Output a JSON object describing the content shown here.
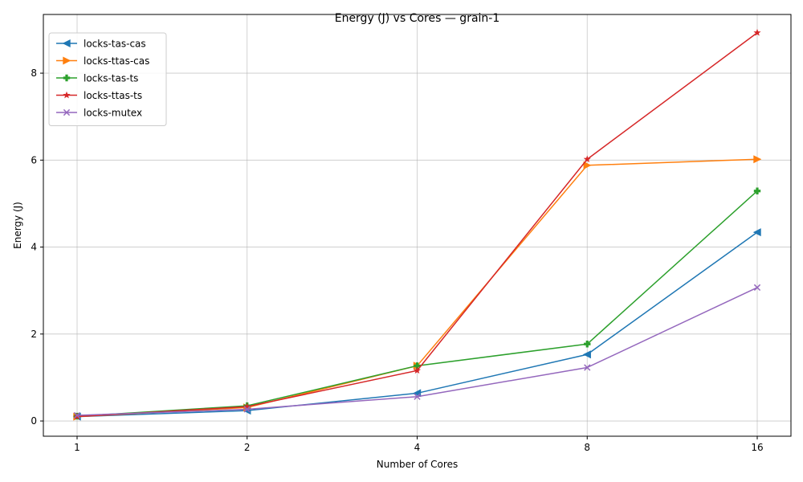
{
  "chart_data": {
    "type": "line",
    "title": "Energy (J) vs Cores — grain-1",
    "xlabel": "Number of Cores",
    "ylabel": "Energy (J)",
    "x": [
      1,
      2,
      4,
      8,
      16
    ],
    "x_tick_labels": [
      "1",
      "2",
      "4",
      "8",
      "16"
    ],
    "x_scale": "log2",
    "ylim": [
      -0.35,
      9.35
    ],
    "y_ticks": [
      0,
      2,
      4,
      6,
      8
    ],
    "y_tick_labels": [
      "0",
      "2",
      "4",
      "6",
      "8"
    ],
    "grid": true,
    "legend_position": "top-left",
    "series": [
      {
        "name": "locks-tas-cas",
        "color": "#1f77b4",
        "marker": "triangle-left",
        "values": [
          0.1,
          0.24,
          0.64,
          1.53,
          4.34
        ]
      },
      {
        "name": "locks-ttas-cas",
        "color": "#ff7f0e",
        "marker": "triangle-right",
        "values": [
          0.1,
          0.31,
          1.27,
          5.88,
          6.02
        ]
      },
      {
        "name": "locks-tas-ts",
        "color": "#2ca02c",
        "marker": "plus",
        "values": [
          0.11,
          0.35,
          1.27,
          1.77,
          5.29
        ]
      },
      {
        "name": "locks-ttas-ts",
        "color": "#d62728",
        "marker": "star",
        "values": [
          0.1,
          0.33,
          1.16,
          6.02,
          8.93
        ]
      },
      {
        "name": "locks-mutex",
        "color": "#9467bd",
        "marker": "x",
        "values": [
          0.13,
          0.27,
          0.56,
          1.23,
          3.07
        ]
      }
    ]
  }
}
